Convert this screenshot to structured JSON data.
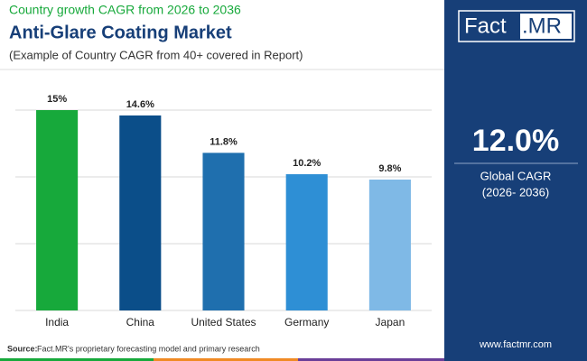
{
  "chart_data": {
    "type": "bar",
    "kicker": "Country growth CAGR from 2026 to 2036",
    "title": "Anti-Glare Coating Market",
    "subtitle": "(Example of Country CAGR from 40+ covered in Report)",
    "categories": [
      "India",
      "China",
      "United States",
      "Germany",
      "Japan"
    ],
    "values": [
      15,
      14.6,
      11.8,
      10.2,
      9.8
    ],
    "value_labels": [
      "15%",
      "14.6%",
      "11.8%",
      "10.2%",
      "9.8%"
    ],
    "colors": [
      "#17a93b",
      "#0b4e89",
      "#1f6fae",
      "#2e8fd5",
      "#7fb9e6"
    ],
    "ylim": [
      0,
      15
    ],
    "yticks": [
      0,
      5,
      10,
      15
    ],
    "grid": true
  },
  "sidebar": {
    "logo_left": "Fact",
    "logo_right": ".MR",
    "stat": "12.0%",
    "stat_label": "Global CAGR",
    "stat_period": "(2026- 2036)",
    "website": "www.factmr.com"
  },
  "footer": {
    "source_label": "Source:",
    "source": "Fact.MR's proprietary forecasting model and primary research"
  }
}
